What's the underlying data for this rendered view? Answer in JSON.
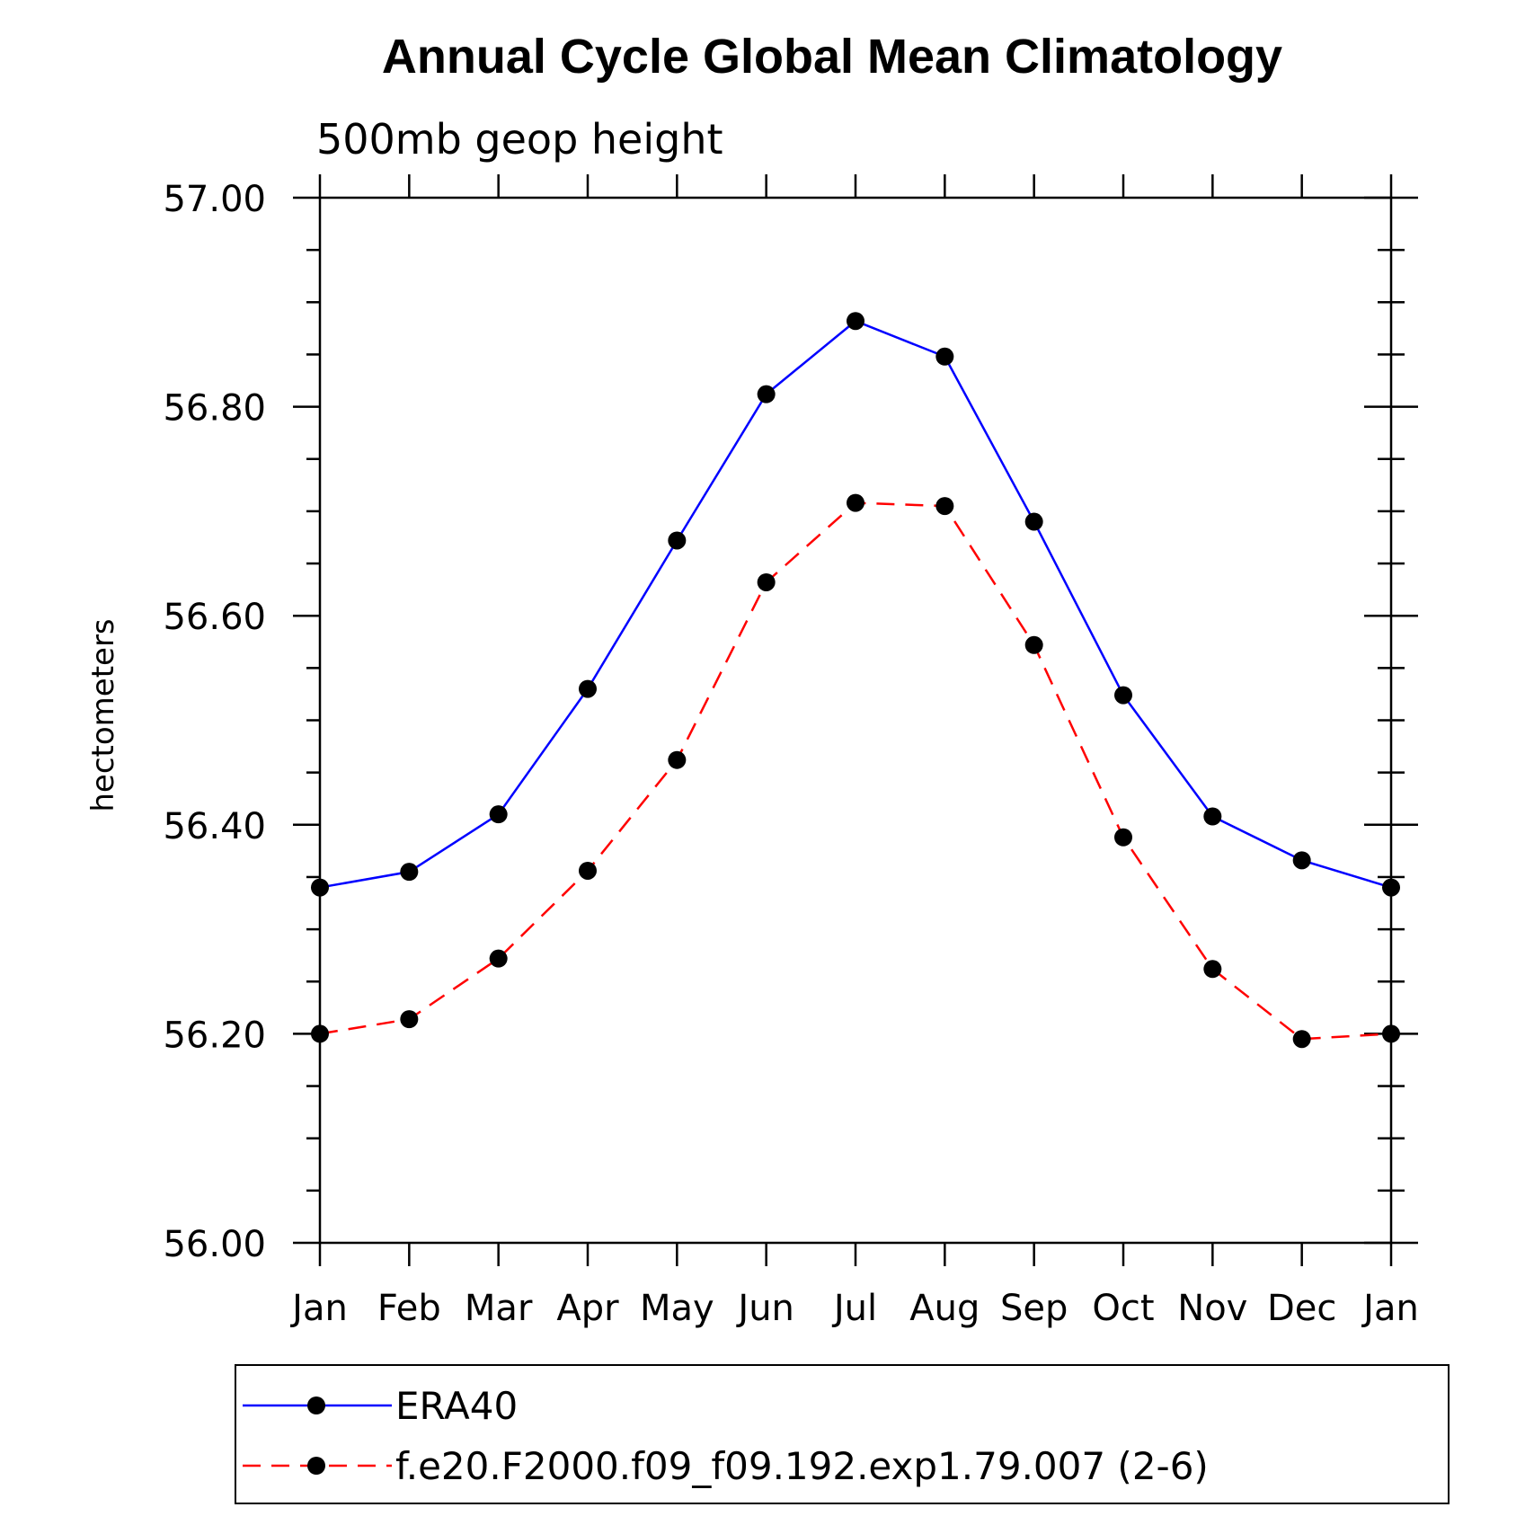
{
  "chart_data": {
    "type": "line",
    "title": "Annual Cycle Global Mean Climatology",
    "subtitle": "500mb geop height",
    "xlabel": "",
    "ylabel": "hectometers",
    "categories": [
      "Jan",
      "Feb",
      "Mar",
      "Apr",
      "May",
      "Jun",
      "Jul",
      "Aug",
      "Sep",
      "Oct",
      "Nov",
      "Dec",
      "Jan"
    ],
    "ylim": [
      56.0,
      57.0
    ],
    "yticks": [
      "56.00",
      "56.20",
      "56.40",
      "56.60",
      "56.80",
      "57.00"
    ],
    "grid": false,
    "legend_position": "bottom",
    "series": [
      {
        "name": "ERA40",
        "color": "#0000ff",
        "line_style": "solid",
        "marker": "circle",
        "values": [
          56.34,
          56.355,
          56.41,
          56.53,
          56.672,
          56.812,
          56.882,
          56.848,
          56.69,
          56.524,
          56.408,
          56.366,
          56.34
        ]
      },
      {
        "name": "f.e20.F2000.f09_f09.192.exp1.79.007 (2-6)",
        "color": "#ff0000",
        "line_style": "dashed",
        "marker": "circle",
        "values": [
          56.2,
          56.214,
          56.272,
          56.356,
          56.462,
          56.632,
          56.708,
          56.705,
          56.572,
          56.388,
          56.262,
          56.195,
          56.2
        ]
      }
    ]
  }
}
